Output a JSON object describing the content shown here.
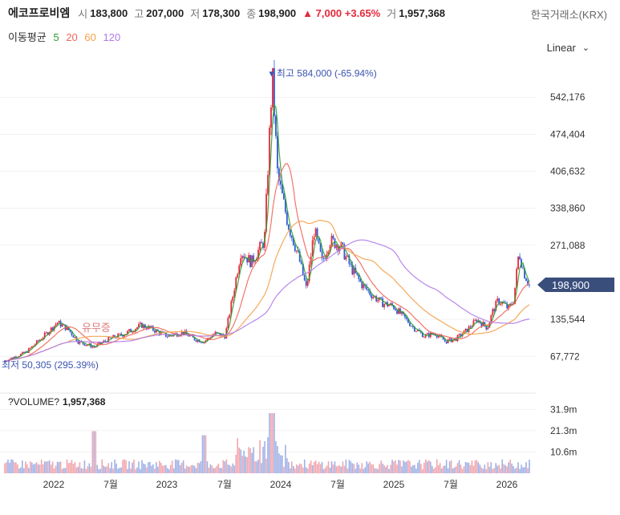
{
  "header": {
    "name": "에코프로비엠",
    "open_label": "시",
    "open": "183,800",
    "high_label": "고",
    "high": "207,000",
    "low_label": "저",
    "low": "178,300",
    "close_label": "종",
    "close": "198,900",
    "change": "▲ 7,000 +3.65%",
    "volume_label": "거",
    "volume": "1,957,368",
    "exchange": "한국거래소(KRX)"
  },
  "ma_legend": {
    "title": "이동평균",
    "items": [
      {
        "label": "5",
        "color": "#2ca02c"
      },
      {
        "label": "20",
        "color": "#f0665a"
      },
      {
        "label": "60",
        "color": "#f5a04a"
      },
      {
        "label": "120",
        "color": "#b07ae8"
      }
    ]
  },
  "scale_mode": "Linear",
  "chart_data": {
    "type": "candlestick",
    "y_ticks": [
      "542,176",
      "474,404",
      "406,632",
      "338,860",
      "271,088",
      "135,544",
      "67,772"
    ],
    "y_tick_values": [
      542176,
      474404,
      406632,
      338860,
      271088,
      135544,
      67772
    ],
    "current_price": "198,900",
    "current_price_value": 198900,
    "x_ticks": [
      "2022",
      "7월",
      "2023",
      "7월",
      "2024",
      "7월",
      "2025",
      "7월",
      "2026"
    ],
    "annotations": {
      "high_label": "최고 584,000 (-65.94%)",
      "high_value": 584000,
      "low_label": "최저 50,305 (295.39%)",
      "low_value": 50305,
      "event_label": "유무증"
    },
    "price_path": [
      [
        0,
        60000
      ],
      [
        4,
        75000
      ],
      [
        8,
        110000
      ],
      [
        10,
        130000
      ],
      [
        12,
        118000
      ],
      [
        14,
        95000
      ],
      [
        17,
        85000
      ],
      [
        20,
        100000
      ],
      [
        23,
        110000
      ],
      [
        26,
        125000
      ],
      [
        28,
        118000
      ],
      [
        31,
        105000
      ],
      [
        34,
        112000
      ],
      [
        36,
        100000
      ],
      [
        38,
        95000
      ],
      [
        40,
        110000
      ],
      [
        42,
        105000
      ],
      [
        43.5,
        180000
      ],
      [
        45,
        260000
      ],
      [
        47,
        240000
      ],
      [
        49.5,
        280000
      ],
      [
        51,
        584000
      ],
      [
        52,
        400000
      ],
      [
        54,
        310000
      ],
      [
        56,
        250000
      ],
      [
        57.5,
        190000
      ],
      [
        59,
        300000
      ],
      [
        60.5,
        240000
      ],
      [
        62,
        280000
      ],
      [
        64,
        270000
      ],
      [
        66,
        230000
      ],
      [
        68,
        200000
      ],
      [
        70,
        180000
      ],
      [
        72,
        165000
      ],
      [
        74,
        160000
      ],
      [
        76,
        140000
      ],
      [
        78,
        120000
      ],
      [
        80,
        105000
      ],
      [
        82,
        110000
      ],
      [
        84,
        95000
      ],
      [
        86,
        100000
      ],
      [
        88,
        115000
      ],
      [
        90,
        135000
      ],
      [
        92,
        120000
      ],
      [
        93,
        150000
      ],
      [
        94,
        170000
      ],
      [
        95,
        165000
      ],
      [
        96,
        155000
      ],
      [
        97,
        170000
      ],
      [
        98,
        260000
      ],
      [
        99,
        220000
      ],
      [
        100,
        198900
      ]
    ],
    "volume_ticks": [
      "31.9m",
      "21.3m",
      "10.6m"
    ],
    "volume_tick_values": [
      31900000,
      21300000,
      10600000
    ],
    "volume_title": "?VOLUME?",
    "volume_value": "1,957,368"
  }
}
